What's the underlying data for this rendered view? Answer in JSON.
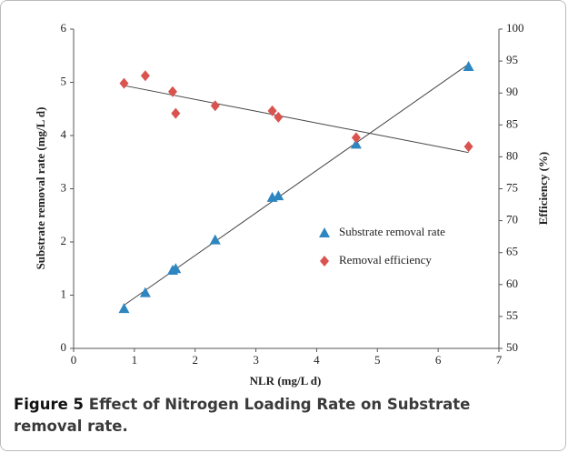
{
  "chart_data": {
    "type": "scatter",
    "x_label": "NLR  (mg/L d)",
    "y_label": "Substrate removal rate (mg/L d)",
    "y2_label": "Efficiency (%)",
    "xlim": [
      0,
      7
    ],
    "xticks": [
      0,
      1,
      2,
      3,
      4,
      5,
      6,
      7
    ],
    "ylim": [
      0,
      6
    ],
    "yticks": [
      0,
      1,
      2,
      3,
      4,
      5,
      6
    ],
    "y2lim": [
      50,
      100
    ],
    "y2ticks": [
      50,
      55,
      60,
      65,
      70,
      75,
      80,
      85,
      90,
      95,
      100
    ],
    "trendline": true,
    "legend": "right",
    "series": [
      {
        "name": "Substrate removal rate",
        "color": "#2e86c1",
        "marker": "triangle",
        "x": [
          0.83,
          1.18,
          1.63,
          1.68,
          2.33,
          3.27,
          3.37,
          4.65,
          6.5
        ],
        "values": [
          0.75,
          1.05,
          1.47,
          1.5,
          2.04,
          2.84,
          2.87,
          3.84,
          5.3
        ]
      },
      {
        "name": "Removal efficiency",
        "color": "#d9534f",
        "marker": "diamond",
        "axis": "y2",
        "x": [
          0.83,
          1.18,
          1.63,
          1.68,
          2.33,
          3.27,
          3.37,
          4.65,
          6.5
        ],
        "values": [
          91.5,
          92.7,
          90.2,
          86.8,
          88.0,
          87.2,
          86.2,
          83.0,
          81.6
        ]
      }
    ]
  },
  "caption": {
    "label": "Figure 5",
    "text": "Effect of Nitrogen Loading Rate on Substrate removal rate."
  }
}
